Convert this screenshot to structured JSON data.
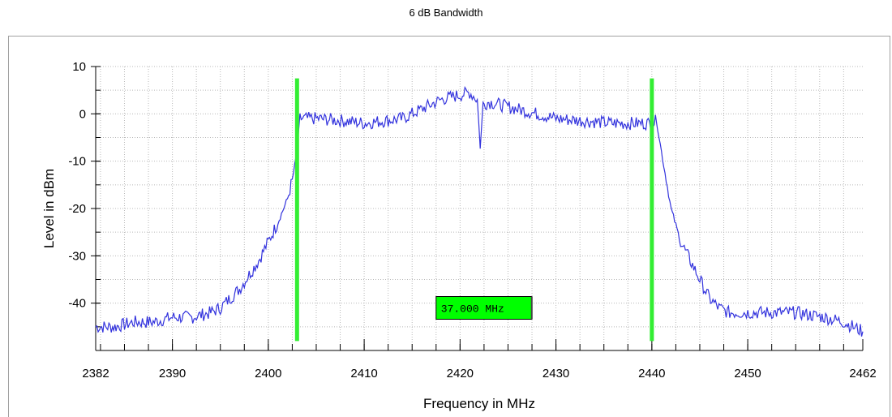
{
  "chart_data": {
    "type": "line",
    "title": "6 dB Bandwidth",
    "xlabel": "Frequency in MHz",
    "ylabel": "Level in dBm",
    "xlim": [
      2382,
      2462
    ],
    "ylim": [
      -50,
      10
    ],
    "x_ticks": [
      2382,
      2390,
      2400,
      2410,
      2420,
      2430,
      2440,
      2450,
      2462
    ],
    "y_ticks": [
      10,
      0,
      -10,
      -20,
      -30,
      -40
    ],
    "grid": true,
    "series": [
      {
        "color": "#3333dd",
        "x": [
          2382,
          2384,
          2386,
          2388,
          2390,
          2392,
          2394,
          2395,
          2396,
          2397,
          2398,
          2399,
          2400,
          2401,
          2402,
          2402.5,
          2403,
          2403.3,
          2405,
          2408,
          2410,
          2412,
          2414,
          2416,
          2418,
          2420,
          2421,
          2421.8,
          2422.1,
          2422.4,
          2423,
          2425,
          2427,
          2430,
          2433,
          2436,
          2438,
          2440,
          2440.5,
          2441,
          2442,
          2443,
          2444,
          2445,
          2446,
          2447,
          2448,
          2450,
          2452,
          2455,
          2458,
          2460,
          2462
        ],
        "y": [
          -45,
          -45,
          -44,
          -44,
          -43,
          -43,
          -42,
          -41,
          -39,
          -37,
          -34,
          -31,
          -27,
          -23,
          -18,
          -14,
          -8,
          -1,
          -1,
          -1.5,
          -2,
          -1.5,
          -1,
          1,
          3,
          4,
          4.5,
          3,
          -7,
          2,
          2.5,
          1.5,
          0.5,
          -1,
          -1.5,
          -2,
          -2,
          -2,
          -1.5,
          -8,
          -20,
          -27,
          -31,
          -35,
          -39,
          -41,
          -42,
          -42,
          -42,
          -42,
          -43,
          -44,
          -46
        ]
      }
    ],
    "markers": [
      {
        "x": 2403,
        "y_top": 7.5,
        "y_bottom": -48,
        "color": "#33ee33"
      },
      {
        "x": 2440,
        "y_top": 7.5,
        "y_bottom": -48,
        "color": "#33ee33"
      }
    ],
    "annotation": {
      "text": "37.000 MHz",
      "x": 2417.5,
      "y": -41,
      "fill": "#00ff00"
    }
  }
}
